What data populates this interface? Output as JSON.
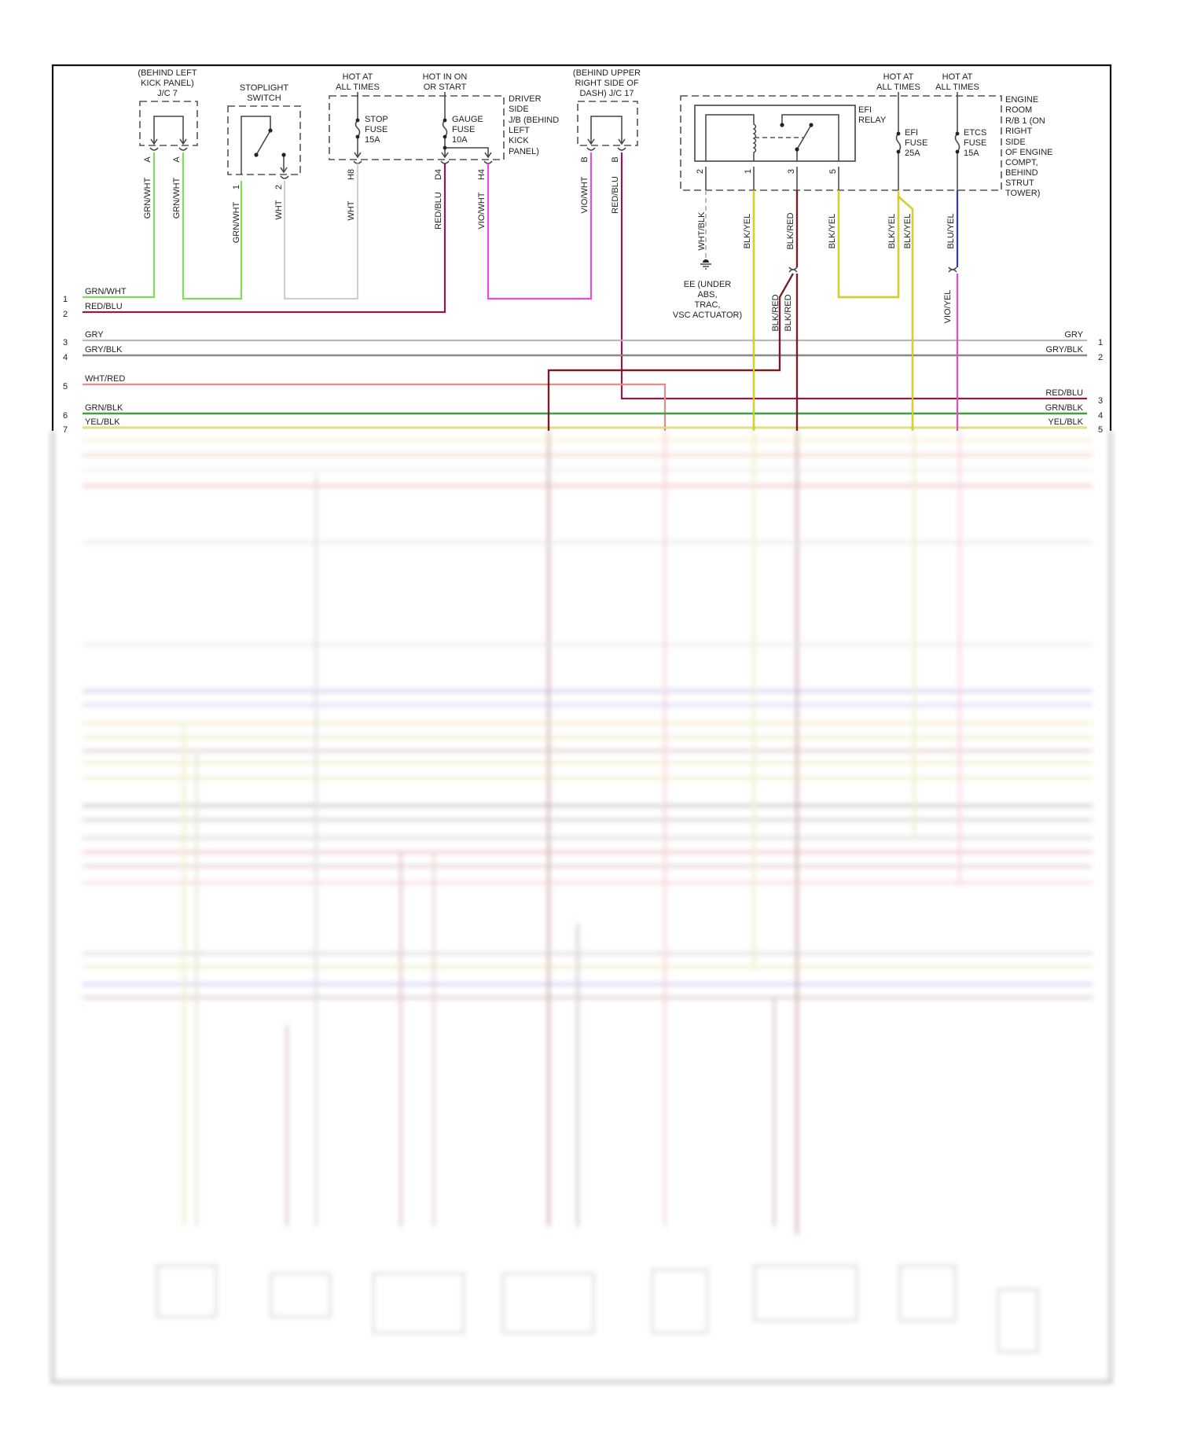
{
  "jc7": {
    "title": [
      "(BEHIND LEFT",
      "KICK PANEL)",
      "J/C 7"
    ],
    "pins": [
      "A",
      "A"
    ],
    "wires": [
      "GRN/WHT",
      "GRN/WHT"
    ]
  },
  "stoplight": {
    "title": [
      "STOPLIGHT",
      "SWITCH"
    ],
    "pins": [
      "1",
      "2"
    ],
    "wires": [
      "GRN/WHT",
      "WHT"
    ]
  },
  "jb": {
    "hot1": [
      "HOT AT",
      "ALL TIMES"
    ],
    "hot2": [
      "HOT IN ON",
      "OR START"
    ],
    "stop_fuse": [
      "STOP",
      "FUSE",
      "15A"
    ],
    "gauge_fuse": [
      "GAUGE",
      "FUSE",
      "10A"
    ],
    "label": [
      "DRIVER",
      "SIDE",
      "J/B (BEHIND",
      "LEFT",
      "KICK",
      "PANEL)"
    ],
    "pins": [
      "H8",
      "D4",
      "H4"
    ],
    "wires": [
      "WHT",
      "RED/BLU",
      "VIO/WHT"
    ]
  },
  "jc17": {
    "title": [
      "(BEHIND UPPER",
      "RIGHT SIDE OF",
      "DASH) J/C 17"
    ],
    "pins": [
      "B",
      "B"
    ],
    "wires": [
      "VIO/WHT",
      "RED/BLU"
    ]
  },
  "rb1": {
    "hot1": [
      "HOT AT",
      "ALL TIMES"
    ],
    "hot2": [
      "HOT AT",
      "ALL TIMES"
    ],
    "relay": [
      "EFI",
      "RELAY"
    ],
    "efi_fuse": [
      "EFI",
      "FUSE",
      "25A"
    ],
    "etcs_fuse": [
      "ETCS",
      "FUSE",
      "15A"
    ],
    "label": [
      "ENGINE",
      "ROOM",
      "R/B 1 (ON",
      "RIGHT",
      "SIDE",
      "OF ENGINE",
      "COMPT,",
      "BEHIND",
      "STRUT",
      "TOWER)"
    ],
    "pins": [
      "2",
      "1",
      "3",
      "5"
    ],
    "wires": [
      "WHT/BLK",
      "BLK/YEL",
      "BLK/RED",
      "BLK/YEL",
      "BLK/YEL",
      "BLK/YEL",
      "BLU/YEL"
    ]
  },
  "ground": {
    "label": [
      "EE (UNDER",
      "ABS,",
      "TRAC,",
      "VSC ACTUATOR)"
    ]
  },
  "splice": {
    "wires": [
      "BLK/RED",
      "BLK/RED",
      "VIO/YEL"
    ]
  },
  "left_rows": [
    {
      "num": "1",
      "label": "GRN/WHT"
    },
    {
      "num": "2",
      "label": "RED/BLU"
    },
    {
      "num": "3",
      "label": "GRY"
    },
    {
      "num": "4",
      "label": "GRY/BLK"
    },
    {
      "num": "5",
      "label": "WHT/RED"
    },
    {
      "num": "6",
      "label": "GRN/BLK"
    },
    {
      "num": "7",
      "label": "YEL/BLK"
    }
  ],
  "right_rows": [
    {
      "num": "1",
      "label": "GRY"
    },
    {
      "num": "2",
      "label": "GRY/BLK"
    },
    {
      "num": "3",
      "label": "RED/BLU"
    },
    {
      "num": "4",
      "label": "GRN/BLK"
    },
    {
      "num": "5",
      "label": "YEL/BLK"
    }
  ],
  "colors": {
    "grn_wht": "#7fdc55",
    "red_blu": "#8e1a4e",
    "wht": "#cfcfcf",
    "vio_wht": "#e54be5",
    "gry": "#b8b8b8",
    "gry_blk": "#8a8a8a",
    "wht_red": "#e68a8a",
    "grn_blk": "#3aa53a",
    "yel_blk": "#e9e36a",
    "blk_yel": "#d9d31e",
    "blk_red": "#7c1c22",
    "blu_yel": "#3535c0",
    "vio_yel": "#e64ac6"
  }
}
